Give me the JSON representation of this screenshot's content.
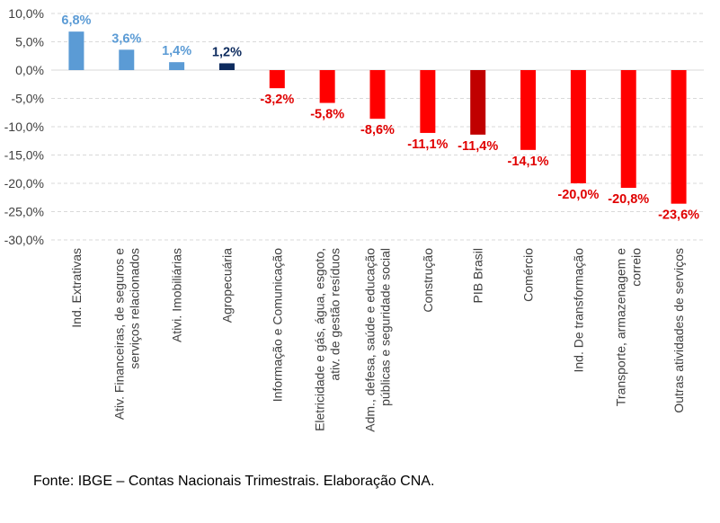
{
  "chart_data": {
    "type": "bar",
    "title": "",
    "xlabel": "",
    "ylabel": "",
    "ylim": [
      -30,
      10
    ],
    "yticks": [
      10,
      5,
      0,
      -5,
      -10,
      -15,
      -20,
      -25,
      -30
    ],
    "ytick_labels": [
      "10,0%",
      "5,0%",
      "0,0%",
      "-5,0%",
      "-10,0%",
      "-15,0%",
      "-20,0%",
      "-25,0%",
      "-30,0%"
    ],
    "grid": true,
    "categories": [
      [
        "Ind. Extrativas"
      ],
      [
        "Ativ. Financeiras, de seguros e",
        "serviços relacionados"
      ],
      [
        "Ativi. Imobiliárias"
      ],
      [
        "Agropecuária"
      ],
      [
        "Informação e Comunicação"
      ],
      [
        "Eletricidade e gás, água, esgoto,",
        "ativ. de gestão resíduos"
      ],
      [
        "Adm., defesa, saúde e educação",
        "públicas e seguridade social"
      ],
      [
        "Construção"
      ],
      [
        "PIB Brasil"
      ],
      [
        "Comércio"
      ],
      [
        "Ind. De transformação"
      ],
      [
        "Transporte, armazenagem e",
        "correio"
      ],
      [
        "Outras atividades de serviços"
      ]
    ],
    "values": [
      6.8,
      3.6,
      1.4,
      1.2,
      -3.2,
      -5.8,
      -8.6,
      -11.1,
      -11.4,
      -14.1,
      -20.0,
      -20.8,
      -23.6
    ],
    "labels": [
      "6,8%",
      "3,6%",
      "1,4%",
      "1,2%",
      "-3,2%",
      "-5,8%",
      "-8,6%",
      "-11,1%",
      "-11,4%",
      "-14,1%",
      "-20,0%",
      "-20,8%",
      "-23,6%"
    ],
    "colors": [
      "#5b9bd5",
      "#5b9bd5",
      "#5b9bd5",
      "#0d2b5e",
      "#ff0000",
      "#ff0000",
      "#ff0000",
      "#ff0000",
      "#c00000",
      "#ff0000",
      "#ff0000",
      "#ff0000",
      "#ff0000"
    ],
    "label_colors": [
      "#5b9bd5",
      "#5b9bd5",
      "#5b9bd5",
      "#0d2b5e",
      "#e00000",
      "#e00000",
      "#e00000",
      "#e00000",
      "#e00000",
      "#e00000",
      "#e00000",
      "#e00000",
      "#e00000"
    ]
  },
  "source": "Fonte: IBGE – Contas Nacionais Trimestrais. Elaboração CNA."
}
